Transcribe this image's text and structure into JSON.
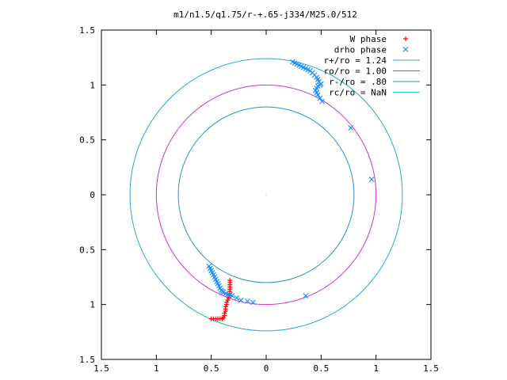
{
  "chart_data": {
    "type": "scatter",
    "title": "m1/n1.5/q1.75/r-+.65-j334/M25.0/512",
    "xlabel": "",
    "ylabel": "",
    "xlim": [
      -1.5,
      1.5
    ],
    "ylim": [
      -1.5,
      1.5
    ],
    "xticks": [
      -1.5,
      -1,
      -0.5,
      0,
      0.5,
      1,
      1.5
    ],
    "yticks": [
      -1.5,
      -1,
      -0.5,
      0,
      0.5,
      1,
      1.5
    ],
    "xtick_labels": [
      "1.5",
      "1",
      "0.5",
      "0",
      "0.5",
      "1",
      "1.5"
    ],
    "ytick_labels": [
      "1.5",
      "1",
      "0.5",
      "0",
      "0.5",
      "1",
      "1.5"
    ],
    "grid": false,
    "legend_position": "top-right",
    "series": [
      {
        "name": "W phase",
        "marker": "plus",
        "color": "#ff0000",
        "x": [
          -0.5,
          -0.48,
          -0.46,
          -0.44,
          -0.42,
          -0.4,
          -0.39,
          -0.38,
          -0.38,
          -0.37,
          -0.37,
          -0.37,
          -0.36,
          -0.36,
          -0.35,
          -0.34,
          -0.34,
          -0.33,
          -0.33,
          -0.33,
          -0.33,
          -0.33,
          -0.33,
          -0.33
        ],
        "y": [
          -1.13,
          -1.13,
          -1.13,
          -1.13,
          -1.13,
          -1.13,
          -1.12,
          -1.1,
          -1.08,
          -1.06,
          -1.04,
          -1.02,
          -1.0,
          -0.98,
          -0.96,
          -0.94,
          -0.92,
          -0.9,
          -0.88,
          -0.86,
          -0.84,
          -0.82,
          -0.8,
          -0.78
        ]
      },
      {
        "name": "drho phase",
        "marker": "cross",
        "color": "#1e90ff",
        "x": [
          -0.52,
          -0.51,
          -0.5,
          -0.49,
          -0.48,
          -0.47,
          -0.46,
          -0.45,
          -0.44,
          -0.43,
          -0.42,
          -0.41,
          -0.4,
          -0.39,
          -0.37,
          -0.35,
          -0.33,
          -0.31,
          -0.27,
          -0.23,
          -0.17,
          -0.12,
          0.36,
          0.24,
          0.26,
          0.28,
          0.3,
          0.32,
          0.34,
          0.36,
          0.38,
          0.4,
          0.42,
          0.44,
          0.46,
          0.47,
          0.48,
          0.5,
          0.49,
          0.47,
          0.46,
          0.45,
          0.46,
          0.47,
          0.49,
          0.51,
          0.77,
          0.96
        ],
        "y": [
          -0.65,
          -0.67,
          -0.69,
          -0.71,
          -0.73,
          -0.75,
          -0.77,
          -0.79,
          -0.81,
          -0.83,
          -0.85,
          -0.87,
          -0.88,
          -0.89,
          -0.9,
          -0.91,
          -0.91,
          -0.92,
          -0.94,
          -0.96,
          -0.97,
          -0.98,
          -0.92,
          1.21,
          1.2,
          1.19,
          1.18,
          1.17,
          1.16,
          1.15,
          1.14,
          1.13,
          1.11,
          1.09,
          1.07,
          1.05,
          1.03,
          1.01,
          1.0,
          0.99,
          0.97,
          0.95,
          0.93,
          0.91,
          0.88,
          0.85,
          0.61,
          0.14
        ]
      },
      {
        "name": "r+/ro = 1.24",
        "line": "circle",
        "radius": 1.24,
        "color": "#2ea8cc"
      },
      {
        "name": "ro/ro = 1.00",
        "line": "circle",
        "radius": 1.0,
        "color": "#cc33cc"
      },
      {
        "name": "r-/ro = .80",
        "line": "circle",
        "radius": 0.8,
        "color": "#2a8fcf"
      },
      {
        "name": "rc/ro = NaN",
        "line": "circle",
        "radius": null,
        "color": "#33cccc"
      }
    ]
  }
}
